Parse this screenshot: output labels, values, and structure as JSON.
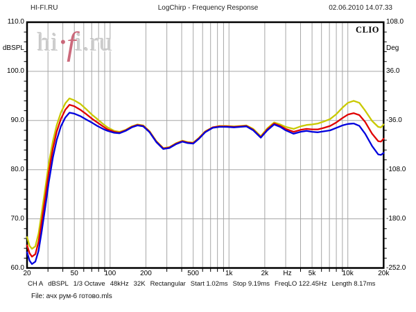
{
  "header": {
    "app": "HI-FI.RU",
    "title": "LogChirp - Frequency Response",
    "datetime": "02.06.2010 14.07.33"
  },
  "brand": "CLIO",
  "watermark": {
    "pre": "hi",
    "dot": "·",
    "f": "f",
    "post": "i.ru"
  },
  "axes": {
    "left": {
      "unit": "dBSPL",
      "ticks": [
        "110.0",
        "100.0",
        "90.0",
        "80.0",
        "70.0",
        "60.0"
      ]
    },
    "right": {
      "unit": "Deg",
      "ticks": [
        "108.0",
        "36.0",
        "-36.0",
        "-108.0",
        "-180.0",
        "-252.0"
      ]
    },
    "bottom": {
      "labels": [
        {
          "text": "20",
          "f": 20
        },
        {
          "text": "50",
          "f": 50
        },
        {
          "text": "100",
          "f": 100
        },
        {
          "text": "200",
          "f": 200
        },
        {
          "text": "500",
          "f": 500
        },
        {
          "text": "1k",
          "f": 1000
        },
        {
          "text": "2k",
          "f": 2000
        },
        {
          "text": "Hz",
          "f": 3100
        },
        {
          "text": "5k",
          "f": 5000
        },
        {
          "text": "10k",
          "f": 10000
        },
        {
          "text": "20k",
          "f": 20000
        }
      ]
    }
  },
  "statusbar": {
    "fields": [
      "CH A",
      "dBSPL",
      "1/3 Octave",
      "48kHz",
      "32K",
      "Rectangular",
      "Start 1.02ms",
      "Stop 9.19ms",
      "FreqLO 122.45Hz",
      "Length 8.17ms"
    ]
  },
  "fileline": "File: ачх рум-6 готово.mls",
  "chart_data": {
    "type": "line",
    "title": "LogChirp - Frequency Response",
    "x_scale": "log",
    "xlim": [
      20,
      20000
    ],
    "ylim_left_dBSPL": [
      60,
      110
    ],
    "ylim_right_deg": [
      -252,
      108
    ],
    "grid": true,
    "grid_color": "#a6a6a6",
    "border_color": "#000000",
    "grid_freqs": [
      30,
      40,
      50,
      60,
      70,
      80,
      90,
      100,
      200,
      300,
      400,
      500,
      600,
      700,
      800,
      900,
      1000,
      2000,
      3000,
      4000,
      5000,
      6000,
      7000,
      8000,
      9000,
      10000
    ],
    "grid_db": [
      100,
      90,
      80,
      70
    ],
    "bottom_tick_freqs": [
      30,
      40,
      60,
      70,
      80,
      90,
      300,
      400,
      600,
      700,
      800,
      900,
      4000,
      6000,
      7000,
      8000,
      9000
    ],
    "minor_tick_db_step": 2,
    "x": [
      20,
      21,
      22,
      23.5,
      25,
      26.6,
      28.5,
      30.5,
      33,
      35.5,
      38.5,
      42,
      45.5,
      50,
      56,
      63,
      71,
      78,
      87,
      95,
      108,
      120,
      135,
      152,
      170,
      190,
      215,
      245,
      280,
      315,
      360,
      405,
      450,
      500,
      560,
      630,
      730,
      830,
      950,
      1100,
      1250,
      1400,
      1600,
      1850,
      2100,
      2400,
      2700,
      3000,
      3500,
      4000,
      4500,
      5000,
      5600,
      6300,
      7100,
      8000,
      9000,
      10000,
      11200,
      12500,
      14000,
      16000,
      18000,
      19000,
      20000
    ],
    "series": [
      {
        "name": "yellow-trace",
        "color": "#c9c900",
        "values": [
          66.3,
          64.5,
          63.9,
          64.4,
          67.0,
          71.3,
          76.3,
          81.3,
          85.8,
          89.0,
          91.6,
          93.5,
          94.5,
          94.1,
          93.4,
          92.3,
          91.1,
          90.3,
          89.3,
          88.6,
          87.9,
          87.7,
          88.1,
          88.8,
          89.2,
          89.0,
          87.8,
          85.8,
          84.4,
          84.6,
          85.4,
          85.9,
          85.6,
          85.5,
          86.5,
          87.8,
          88.6,
          88.9,
          88.9,
          88.8,
          88.9,
          89.0,
          88.3,
          86.8,
          88.4,
          89.6,
          89.2,
          88.7,
          88.3,
          88.8,
          89.1,
          89.2,
          89.4,
          89.8,
          90.3,
          91.3,
          92.6,
          93.6,
          94.0,
          93.6,
          92.0,
          89.9,
          88.7,
          88.6,
          89.2
        ]
      },
      {
        "name": "red-trace",
        "color": "#e00000",
        "values": [
          64.6,
          63.0,
          62.3,
          62.8,
          65.3,
          69.5,
          74.5,
          79.5,
          84.3,
          87.7,
          90.3,
          92.2,
          93.2,
          92.9,
          92.2,
          91.3,
          90.3,
          89.6,
          88.8,
          88.2,
          87.7,
          87.5,
          88.0,
          88.7,
          89.1,
          88.9,
          87.7,
          85.7,
          84.3,
          84.5,
          85.3,
          85.8,
          85.5,
          85.4,
          86.4,
          87.7,
          88.6,
          88.8,
          88.8,
          88.7,
          88.8,
          88.9,
          88.1,
          86.6,
          88.2,
          89.4,
          88.9,
          88.3,
          87.7,
          88.1,
          88.3,
          88.2,
          88.2,
          88.5,
          88.9,
          89.6,
          90.5,
          91.2,
          91.5,
          91.1,
          89.7,
          87.3,
          85.8,
          85.7,
          86.3
        ]
      },
      {
        "name": "blue-trace",
        "color": "#0000dd",
        "values": [
          63.2,
          61.5,
          60.8,
          61.3,
          63.5,
          67.5,
          72.5,
          77.5,
          82.5,
          86.0,
          88.8,
          90.6,
          91.6,
          91.4,
          90.9,
          90.2,
          89.5,
          88.9,
          88.3,
          87.9,
          87.5,
          87.4,
          87.9,
          88.6,
          89.0,
          88.8,
          87.6,
          85.6,
          84.2,
          84.4,
          85.2,
          85.7,
          85.4,
          85.3,
          86.3,
          87.6,
          88.5,
          88.7,
          88.7,
          88.6,
          88.7,
          88.8,
          88.0,
          86.5,
          88.0,
          89.2,
          88.7,
          88.0,
          87.3,
          87.7,
          87.9,
          87.7,
          87.6,
          87.8,
          88.0,
          88.5,
          89.0,
          89.3,
          89.4,
          88.9,
          87.3,
          84.8,
          83.1,
          83.0,
          83.4
        ]
      }
    ]
  }
}
